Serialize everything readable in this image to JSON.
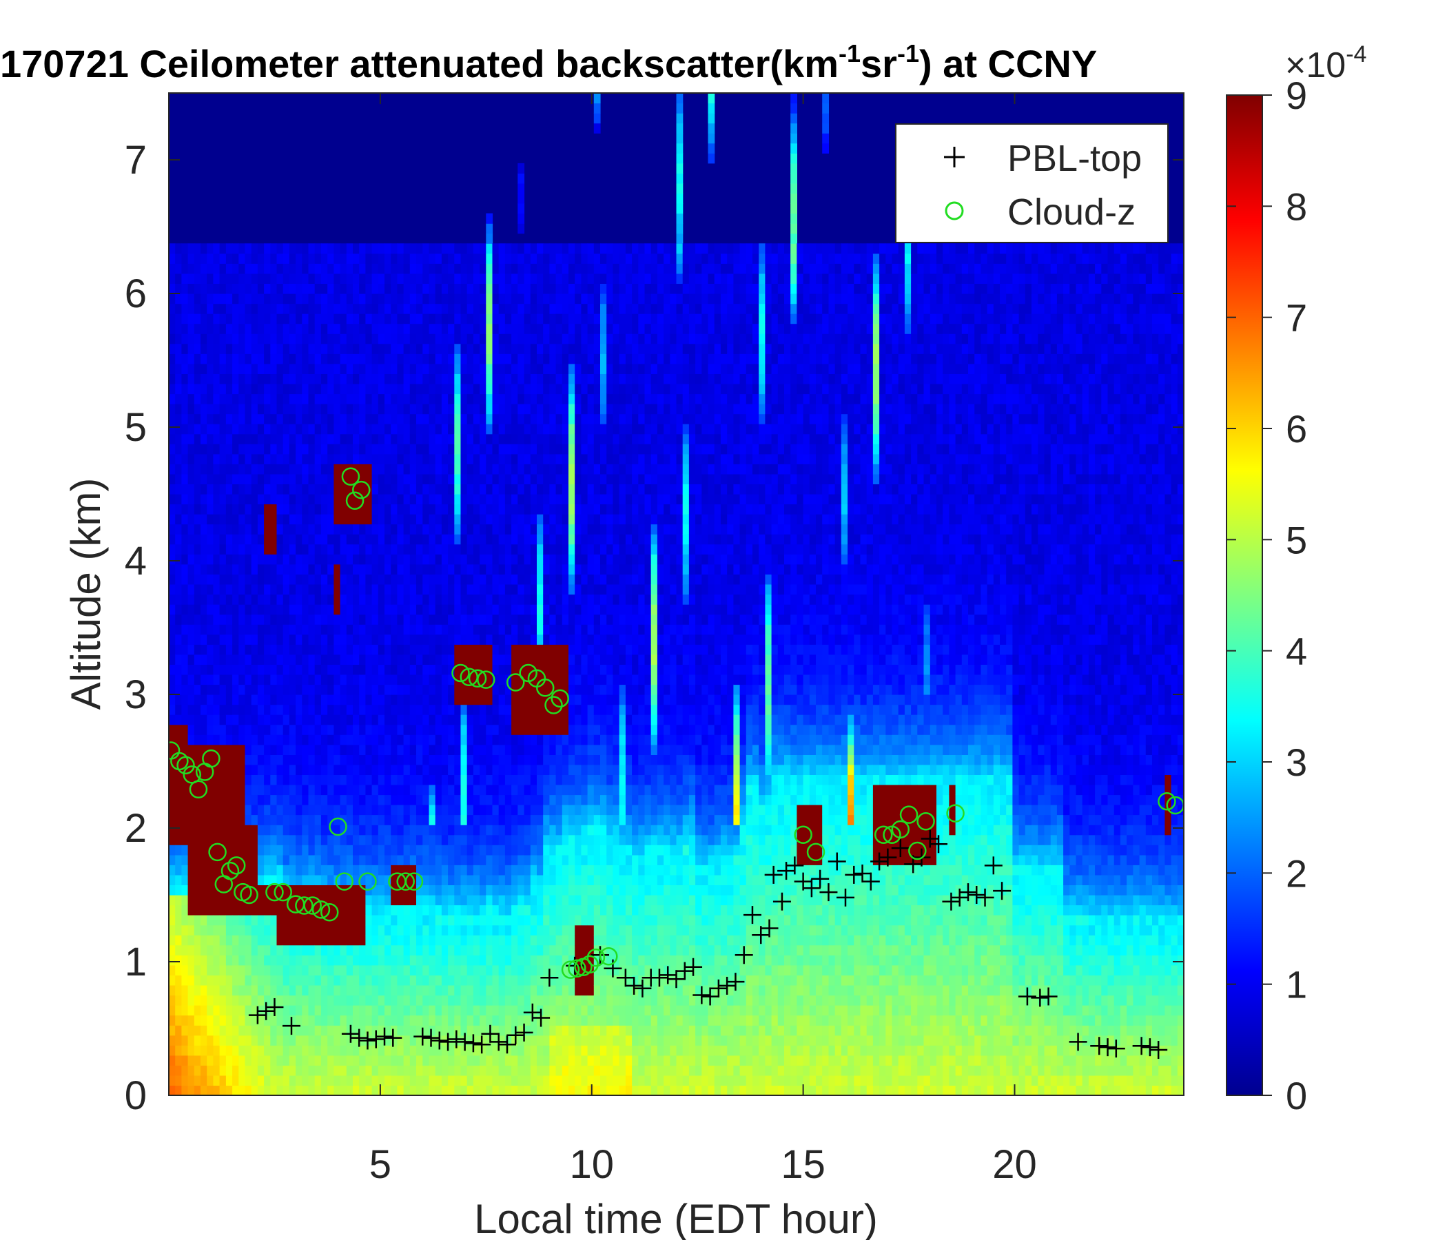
{
  "chart_data": {
    "type": "heatmap",
    "title_main": "170721 Ceilometer attenuated backscatter(km",
    "title_sup1": "-1",
    "title_mid": "sr",
    "title_sup2": "-1",
    "title_end": ") at CCNY",
    "xlabel": "Local time (EDT hour)",
    "ylabel": "Altitude (km)",
    "xlim": [
      0,
      24
    ],
    "ylim": [
      0,
      7.5
    ],
    "xticks": [
      5,
      10,
      15,
      20
    ],
    "xtick_labels": [
      "5",
      "10",
      "15",
      "20"
    ],
    "yticks": [
      0,
      1,
      2,
      3,
      4,
      5,
      6,
      7
    ],
    "ytick_labels": [
      "0",
      "1",
      "2",
      "3",
      "4",
      "5",
      "6",
      "7"
    ],
    "colorbar": {
      "clim": [
        0,
        9
      ],
      "ticks": [
        0,
        1,
        2,
        3,
        4,
        5,
        6,
        7,
        8,
        9
      ],
      "tick_labels": [
        "0",
        "1",
        "2",
        "3",
        "4",
        "5",
        "6",
        "7",
        "8",
        "9"
      ],
      "multiplier_base": "×10",
      "multiplier_exp": "-4",
      "colormap": "jet"
    },
    "legend": {
      "placement": "top-right",
      "entries": [
        {
          "name": "PBL-top",
          "marker": "+",
          "color": "#000000"
        },
        {
          "name": "Cloud-z",
          "marker": "o",
          "color": "#22dd22"
        }
      ]
    },
    "series": [
      {
        "name": "PBL-top",
        "x": [
          2.1,
          2.3,
          2.5,
          2.9,
          4.3,
          4.5,
          4.7,
          4.9,
          5.1,
          5.3,
          6.0,
          6.2,
          6.4,
          6.6,
          6.8,
          7.0,
          7.2,
          7.4,
          7.6,
          7.8,
          8.0,
          8.2,
          8.4,
          8.6,
          8.8,
          9.0,
          9.6,
          10.2,
          10.5,
          10.8,
          11.0,
          11.2,
          11.4,
          11.6,
          11.8,
          12.0,
          12.2,
          12.4,
          12.6,
          12.8,
          13.0,
          13.2,
          13.4,
          13.6,
          13.8,
          14.0,
          14.2,
          14.3,
          14.5,
          14.6,
          14.8,
          15.0,
          15.2,
          15.4,
          15.6,
          15.8,
          16.0,
          16.2,
          16.4,
          16.6,
          16.8,
          17.0,
          17.3,
          17.6,
          17.8,
          18.0,
          18.2,
          18.5,
          18.7,
          18.9,
          19.1,
          19.3,
          19.5,
          19.7,
          20.3,
          20.6,
          20.8,
          21.5,
          22.0,
          22.2,
          22.4,
          23.0,
          23.2,
          23.4
        ],
        "y": [
          0.6,
          0.63,
          0.66,
          0.52,
          0.46,
          0.43,
          0.41,
          0.42,
          0.44,
          0.43,
          0.44,
          0.43,
          0.41,
          0.4,
          0.42,
          0.4,
          0.39,
          0.38,
          0.46,
          0.4,
          0.38,
          0.45,
          0.47,
          0.62,
          0.58,
          0.88,
          0.97,
          1.05,
          0.95,
          0.88,
          0.82,
          0.8,
          0.88,
          0.88,
          0.9,
          0.87,
          0.93,
          0.96,
          0.75,
          0.74,
          0.8,
          0.82,
          0.85,
          1.05,
          1.35,
          1.2,
          1.25,
          1.65,
          1.45,
          1.68,
          1.72,
          1.6,
          1.55,
          1.62,
          1.52,
          1.75,
          1.48,
          1.65,
          1.66,
          1.6,
          1.75,
          1.78,
          1.85,
          1.73,
          1.78,
          1.92,
          1.88,
          1.45,
          1.48,
          1.52,
          1.5,
          1.48,
          1.72,
          1.53,
          0.74,
          0.73,
          0.74,
          0.4,
          0.37,
          0.36,
          0.35,
          0.37,
          0.36,
          0.34
        ]
      },
      {
        "name": "Cloud-z",
        "x": [
          0.05,
          0.25,
          0.4,
          0.55,
          0.7,
          0.85,
          1.0,
          1.15,
          1.3,
          1.45,
          1.6,
          1.75,
          1.9,
          2.5,
          2.7,
          3.0,
          3.2,
          3.4,
          3.6,
          3.8,
          4.0,
          4.15,
          4.3,
          4.4,
          4.55,
          4.7,
          5.4,
          5.6,
          5.8,
          6.9,
          7.1,
          7.3,
          7.5,
          8.2,
          8.5,
          8.7,
          8.9,
          9.1,
          9.25,
          9.5,
          9.65,
          9.8,
          9.95,
          10.1,
          10.4,
          15.0,
          15.3,
          16.9,
          17.1,
          17.3,
          17.5,
          17.7,
          17.9,
          18.6,
          23.6,
          23.8
        ],
        "y": [
          2.58,
          2.5,
          2.47,
          2.4,
          2.29,
          2.42,
          2.52,
          1.82,
          1.58,
          1.68,
          1.72,
          1.52,
          1.5,
          1.52,
          1.52,
          1.43,
          1.42,
          1.42,
          1.39,
          1.37,
          2.01,
          1.6,
          4.63,
          4.45,
          4.53,
          1.6,
          1.6,
          1.6,
          1.6,
          3.16,
          3.13,
          3.12,
          3.11,
          3.09,
          3.16,
          3.12,
          3.05,
          2.92,
          2.97,
          0.94,
          0.95,
          0.96,
          0.98,
          1.03,
          1.04,
          1.95,
          1.82,
          1.95,
          1.95,
          1.99,
          2.1,
          1.83,
          2.05,
          2.11,
          2.2,
          2.17
        ]
      }
    ],
    "heatmap_note_features": {
      "clouds": [
        {
          "t0": 0.0,
          "t1": 0.45,
          "z0": 1.85,
          "z1": 2.8
        },
        {
          "t0": 0.45,
          "t1": 1.75,
          "z0": 1.85,
          "z1": 2.6
        },
        {
          "t0": 0.45,
          "t1": 2.1,
          "z0": 1.35,
          "z1": 2.0
        },
        {
          "t0": 2.1,
          "t1": 2.6,
          "z0": 1.35,
          "z1": 1.6
        },
        {
          "t0": 2.6,
          "t1": 4.6,
          "z0": 1.15,
          "z1": 1.6
        },
        {
          "t0": 2.25,
          "t1": 2.55,
          "z0": 4.05,
          "z1": 4.4
        },
        {
          "t0": 3.95,
          "t1": 4.1,
          "z0": 3.6,
          "z1": 3.95
        },
        {
          "t0": 3.95,
          "t1": 4.75,
          "z0": 4.3,
          "z1": 4.75
        },
        {
          "t0": 5.3,
          "t1": 5.8,
          "z0": 1.4,
          "z1": 1.75
        },
        {
          "t0": 6.8,
          "t1": 7.6,
          "z0": 2.95,
          "z1": 3.35
        },
        {
          "t0": 8.1,
          "t1": 9.5,
          "z0": 2.7,
          "z1": 3.4
        },
        {
          "t0": 9.6,
          "t1": 10.1,
          "z0": 0.75,
          "z1": 1.3
        },
        {
          "t0": 14.9,
          "t1": 15.5,
          "z0": 1.7,
          "z1": 2.15
        },
        {
          "t0": 16.7,
          "t1": 18.1,
          "z0": 1.7,
          "z1": 2.3
        },
        {
          "t0": 18.4,
          "t1": 18.6,
          "z0": 1.95,
          "z1": 2.3
        },
        {
          "t0": 23.5,
          "t1": 23.75,
          "z0": 1.95,
          "z1": 2.4
        }
      ]
    }
  }
}
